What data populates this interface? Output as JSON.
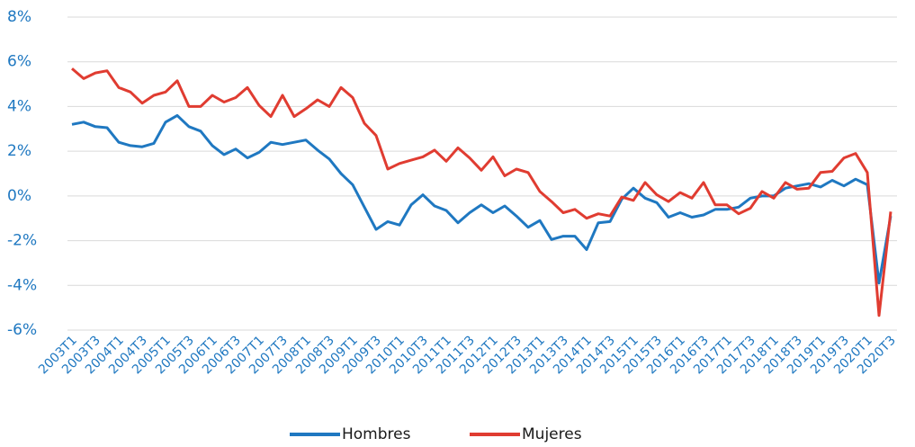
{
  "chart_data": {
    "type": "line",
    "categories": [
      "2003T1",
      null,
      "2003T3",
      null,
      "2004T1",
      null,
      "2004T3",
      null,
      "2005T1",
      null,
      "2005T3",
      null,
      "2006T1",
      null,
      "2006T3",
      null,
      "2007T1",
      null,
      "2007T3",
      null,
      "2008T1",
      null,
      "2008T3",
      null,
      "2009T1",
      null,
      "2009T3",
      null,
      "2010T1",
      null,
      "2010T3",
      null,
      "2011T1",
      null,
      "2011T3",
      null,
      "2012T1",
      null,
      "2012T3",
      null,
      "2013T1",
      null,
      "2013T3",
      null,
      "2014T1",
      null,
      "2014T3",
      null,
      "2015T1",
      null,
      "2015T3",
      null,
      "2016T1",
      null,
      "2016T3",
      null,
      "2017T1",
      null,
      "2017T3",
      null,
      "2018T1",
      null,
      "2018T3",
      null,
      "2019T1",
      null,
      "2019T3",
      null,
      "2020T1",
      null,
      "2020T3"
    ],
    "series": [
      {
        "name": "Hombres",
        "color": "#1f78c1",
        "values": [
          3.2,
          3.3,
          3.1,
          3.05,
          2.4,
          2.25,
          2.2,
          2.35,
          3.3,
          3.6,
          3.1,
          2.9,
          2.25,
          1.85,
          2.1,
          1.7,
          1.95,
          2.4,
          2.3,
          2.4,
          2.5,
          2.05,
          1.65,
          1.0,
          0.5,
          -0.5,
          -1.5,
          -1.15,
          -1.3,
          -0.4,
          0.05,
          -0.45,
          -0.65,
          -1.2,
          -0.75,
          -0.4,
          -0.75,
          -0.45,
          -0.9,
          -1.4,
          -1.1,
          -1.95,
          -1.8,
          -1.8,
          -2.4,
          -1.2,
          -1.15,
          -0.15,
          0.35,
          -0.1,
          -0.3,
          -0.95,
          -0.75,
          -0.95,
          -0.85,
          -0.6,
          -0.6,
          -0.5,
          -0.1,
          0,
          0,
          0.35,
          0.45,
          0.55,
          0.4,
          0.7,
          0.45,
          0.75,
          0.5,
          -3.9,
          -0.9
        ]
      },
      {
        "name": "Mujeres",
        "color": "#e03c31",
        "values": [
          5.7,
          5.25,
          5.5,
          5.6,
          4.85,
          4.65,
          4.15,
          4.5,
          4.65,
          5.15,
          4.0,
          4.0,
          4.5,
          4.2,
          4.4,
          4.85,
          4.05,
          3.55,
          4.5,
          3.55,
          3.9,
          4.3,
          4.0,
          4.85,
          4.4,
          3.25,
          2.7,
          1.2,
          1.45,
          1.6,
          1.75,
          2.05,
          1.55,
          2.15,
          1.7,
          1.15,
          1.75,
          0.9,
          1.2,
          1.05,
          0.2,
          -0.25,
          -0.75,
          -0.6,
          -1.0,
          -0.8,
          -0.9,
          -0.05,
          -0.2,
          0.6,
          0.05,
          -0.25,
          0.15,
          -0.1,
          0.6,
          -0.4,
          -0.4,
          -0.8,
          -0.55,
          0.2,
          -0.1,
          0.6,
          0.3,
          0.35,
          1.05,
          1.1,
          1.7,
          1.9,
          1.05,
          -5.35,
          -0.7
        ]
      }
    ],
    "ylim": [
      -6,
      8
    ],
    "yticks": [
      {
        "value": -6,
        "label": "-6%"
      },
      {
        "value": -4,
        "label": "-4%"
      },
      {
        "value": -2,
        "label": "-2%"
      },
      {
        "value": 0,
        "label": "0%"
      },
      {
        "value": 2,
        "label": "2%"
      },
      {
        "value": 4,
        "label": "4%"
      },
      {
        "value": 6,
        "label": "6%"
      },
      {
        "value": 8,
        "label": "8%"
      }
    ],
    "grid": true,
    "legend": "bottom"
  }
}
